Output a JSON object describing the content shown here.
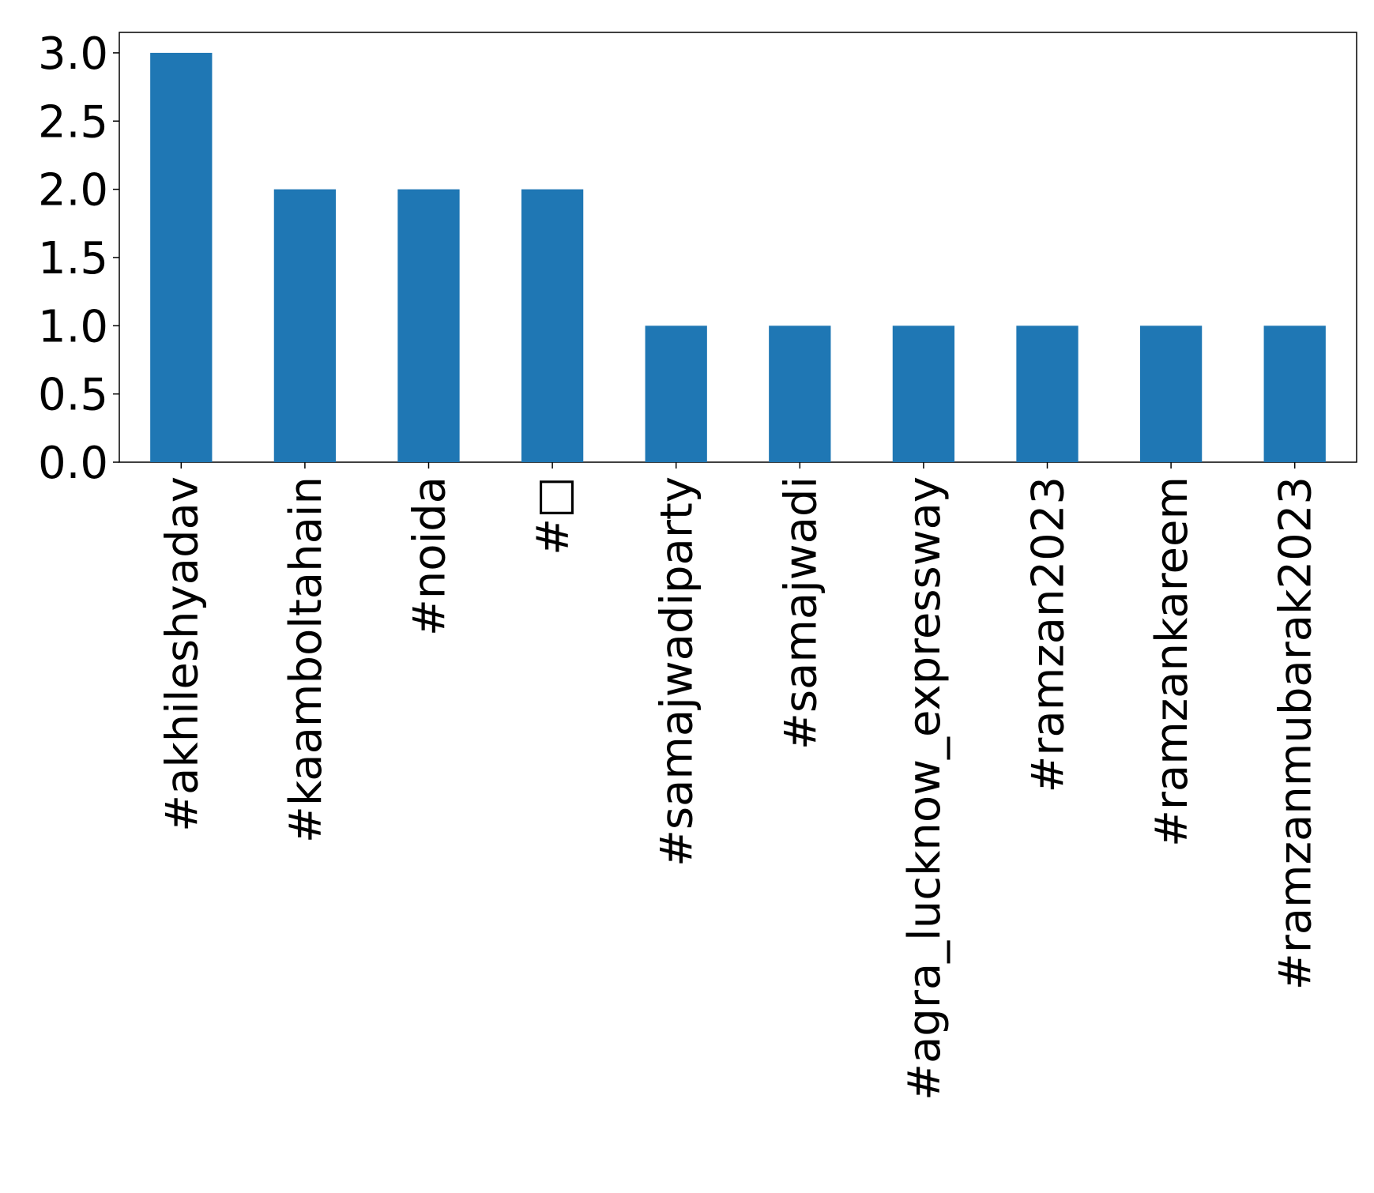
{
  "chart_data": {
    "type": "bar",
    "categories": [
      "#akhileshyadav",
      "#kaamboltahain",
      "#noida",
      "#□",
      "#samajwadiparty",
      "#samajwadi",
      "#agra_lucknow_expressway",
      "#ramzan2023",
      "#ramzankareem",
      "#ramzanmubarak2023"
    ],
    "values": [
      3,
      2,
      2,
      2,
      1,
      1,
      1,
      1,
      1,
      1
    ],
    "color": "#1f77b4",
    "ylim": [
      0,
      3.15
    ],
    "yticks": [
      {
        "value": 0,
        "label": "0.0"
      },
      0.5,
      {
        "value": 1,
        "label": "1.0"
      },
      1.5,
      {
        "value": 2,
        "label": "2.0"
      },
      2.5,
      {
        "value": 3,
        "label": "3.0"
      }
    ],
    "grid": false
  }
}
